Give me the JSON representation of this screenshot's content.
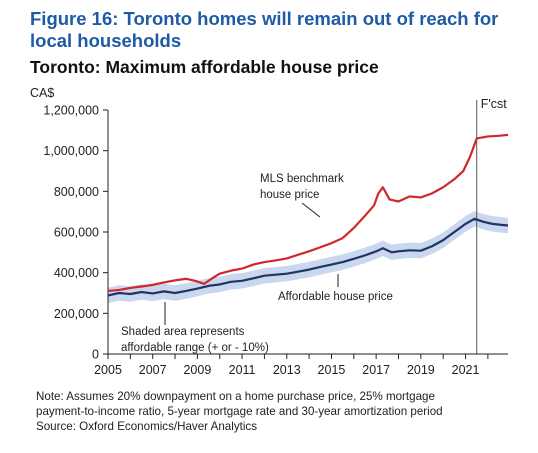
{
  "figure_title": "Figure 16: Toronto homes will remain out of reach for local households",
  "colors": {
    "title": "#1f5aa6",
    "mls_line": "#d0272c",
    "affordable_line": "#22355e",
    "affordable_band": "#c9d7ef"
  },
  "chart_data": {
    "type": "line",
    "title": "Toronto: Maximum affordable house price",
    "ylabel": "CA$",
    "xlabel": "",
    "ylim": [
      0,
      1200000
    ],
    "xlim": [
      2005,
      2022.9
    ],
    "yticks": [
      0,
      200000,
      400000,
      600000,
      800000,
      1000000,
      1200000
    ],
    "ytick_labels": [
      "0",
      "200,000",
      "400,000",
      "600,000",
      "800,000",
      "1,000,000",
      "1,200,000"
    ],
    "xticks": [
      2005,
      2007,
      2009,
      2011,
      2013,
      2015,
      2017,
      2019,
      2021
    ],
    "xtick_labels": [
      "2005",
      "2007",
      "2009",
      "2011",
      "2013",
      "2015",
      "2017",
      "2019",
      "2021"
    ],
    "forecast_start": 2021.5,
    "forecast_label": "F'cst",
    "grid": false,
    "series": [
      {
        "name": "MLS benchmark house price",
        "x": [
          2005.0,
          2005.5,
          2006.0,
          2006.5,
          2007.0,
          2007.5,
          2008.0,
          2008.5,
          2008.9,
          2009.3,
          2009.7,
          2010.0,
          2010.5,
          2011.0,
          2011.5,
          2012.0,
          2012.5,
          2013.0,
          2013.5,
          2014.0,
          2014.5,
          2015.0,
          2015.5,
          2016.0,
          2016.5,
          2016.9,
          2017.1,
          2017.3,
          2017.6,
          2018.0,
          2018.5,
          2019.0,
          2019.5,
          2020.0,
          2020.5,
          2020.9,
          2021.2,
          2021.5,
          2022.0,
          2022.5,
          2022.9
        ],
        "values": [
          310000,
          315000,
          325000,
          332000,
          340000,
          352000,
          362000,
          370000,
          360000,
          345000,
          375000,
          395000,
          410000,
          420000,
          440000,
          452000,
          460000,
          470000,
          488000,
          505000,
          525000,
          545000,
          570000,
          620000,
          680000,
          730000,
          790000,
          820000,
          760000,
          750000,
          775000,
          770000,
          790000,
          820000,
          860000,
          900000,
          970000,
          1060000,
          1070000,
          1073000,
          1078000
        ]
      },
      {
        "name": "Affordable house price",
        "x": [
          2005.0,
          2005.5,
          2006.0,
          2006.5,
          2007.0,
          2007.5,
          2008.0,
          2008.5,
          2009.0,
          2009.5,
          2010.0,
          2010.5,
          2011.0,
          2011.5,
          2012.0,
          2012.5,
          2013.0,
          2013.5,
          2014.0,
          2014.5,
          2015.0,
          2015.5,
          2016.0,
          2016.5,
          2017.0,
          2017.3,
          2017.7,
          2018.0,
          2018.5,
          2019.0,
          2019.5,
          2020.0,
          2020.5,
          2021.0,
          2021.4,
          2021.8,
          2022.2,
          2022.6,
          2022.9
        ],
        "values": [
          288000,
          300000,
          295000,
          305000,
          298000,
          308000,
          300000,
          310000,
          322000,
          335000,
          342000,
          355000,
          360000,
          372000,
          385000,
          390000,
          395000,
          405000,
          415000,
          428000,
          440000,
          452000,
          468000,
          485000,
          505000,
          520000,
          500000,
          505000,
          510000,
          508000,
          530000,
          560000,
          600000,
          640000,
          665000,
          650000,
          640000,
          635000,
          632000
        ],
        "band": 38000
      }
    ],
    "annotations": [
      "MLS benchmark",
      "house price",
      "Affordable house price",
      "Shaded area represents",
      "affordable range (+ or - 10%)"
    ]
  },
  "notes": [
    "Note: Assumes 20% downpayment on a home purchase price, 25% mortgage",
    "payment-to-income ratio, 5-year mortgage rate and 30-year amortization period",
    "Source: Oxford Economics/Haver Analytics"
  ]
}
